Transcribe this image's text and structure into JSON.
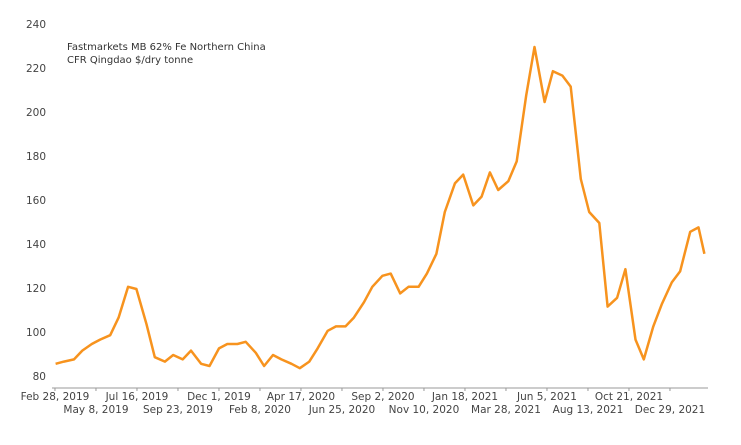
{
  "chart_data": {
    "type": "line",
    "annotation": [
      "Fastmarkets MB 62% Fe Northern China",
      "CFR Qingdao $/dry tonne"
    ],
    "x": [
      "2019-03-01",
      "2019-03-15",
      "2019-04-01",
      "2019-04-15",
      "2019-05-01",
      "2019-05-15",
      "2019-06-01",
      "2019-06-15",
      "2019-07-01",
      "2019-07-15",
      "2019-08-01",
      "2019-08-15",
      "2019-09-01",
      "2019-09-15",
      "2019-10-01",
      "2019-10-15",
      "2019-11-01",
      "2019-11-15",
      "2019-12-01",
      "2019-12-15",
      "2020-01-01",
      "2020-01-15",
      "2020-02-01",
      "2020-02-15",
      "2020-03-01",
      "2020-03-15",
      "2020-04-01",
      "2020-04-15",
      "2020-05-01",
      "2020-05-15",
      "2020-06-01",
      "2020-06-15",
      "2020-07-01",
      "2020-07-15",
      "2020-08-01",
      "2020-08-15",
      "2020-09-01",
      "2020-09-15",
      "2020-10-01",
      "2020-10-15",
      "2020-11-01",
      "2020-11-15",
      "2020-12-01",
      "2020-12-15",
      "2021-01-01",
      "2021-01-15",
      "2021-02-01",
      "2021-02-15",
      "2021-03-01",
      "2021-03-15",
      "2021-04-01",
      "2021-04-15",
      "2021-05-01",
      "2021-05-15",
      "2021-06-01",
      "2021-06-15",
      "2021-07-01",
      "2021-07-15",
      "2021-08-01",
      "2021-08-15",
      "2021-09-01",
      "2021-09-15",
      "2021-10-01",
      "2021-10-15",
      "2021-11-01",
      "2021-11-15",
      "2021-12-01",
      "2021-12-15",
      "2022-01-01",
      "2022-01-15",
      "2022-02-01",
      "2022-02-15",
      "2022-02-25"
    ],
    "series": [
      {
        "color": "#f7931e",
        "values": [
          86,
          87,
          88,
          92,
          95,
          97,
          99,
          107,
          121,
          120,
          104,
          89,
          87,
          90,
          88,
          92,
          86,
          85,
          93,
          95,
          95,
          96,
          91,
          85,
          90,
          88,
          86,
          84,
          87,
          93,
          101,
          103,
          103,
          107,
          114,
          121,
          126,
          127,
          118,
          121,
          121,
          127,
          136,
          155,
          168,
          172,
          158,
          162,
          173,
          165,
          169,
          178,
          208,
          230,
          205,
          219,
          217,
          212,
          170,
          155,
          150,
          112,
          116,
          129,
          97,
          88,
          103,
          113,
          123,
          128,
          146,
          148,
          136
        ]
      }
    ],
    "xlim": [
      "2019-02-23",
      "2022-03-03"
    ],
    "xticks": [
      {
        "value": "2019-02-28",
        "label": "Feb 28, 2019"
      },
      {
        "value": "2019-05-08",
        "label": "May 8, 2019"
      },
      {
        "value": "2019-07-16",
        "label": "Jul 16, 2019"
      },
      {
        "value": "2019-09-23",
        "label": "Sep 23, 2019"
      },
      {
        "value": "2019-12-01",
        "label": "Dec 1, 2019"
      },
      {
        "value": "2020-02-08",
        "label": "Feb 8, 2020"
      },
      {
        "value": "2020-04-17",
        "label": "Apr 17, 2020"
      },
      {
        "value": "2020-06-25",
        "label": "Jun 25, 2020"
      },
      {
        "value": "2020-09-02",
        "label": "Sep 2, 2020"
      },
      {
        "value": "2020-11-10",
        "label": "Nov 10, 2020"
      },
      {
        "value": "2021-01-18",
        "label": "Jan 18, 2021"
      },
      {
        "value": "2021-03-28",
        "label": "Mar 28, 2021"
      },
      {
        "value": "2021-06-05",
        "label": "Jun 5, 2021"
      },
      {
        "value": "2021-08-13",
        "label": "Aug 13, 2021"
      },
      {
        "value": "2021-10-21",
        "label": "Oct 21, 2021"
      },
      {
        "value": "2021-12-29",
        "label": "Dec 29, 2021"
      }
    ],
    "ylim": [
      75,
      240
    ],
    "yticks": [
      80,
      100,
      120,
      140,
      160,
      180,
      200,
      220,
      240
    ],
    "grid": false
  }
}
